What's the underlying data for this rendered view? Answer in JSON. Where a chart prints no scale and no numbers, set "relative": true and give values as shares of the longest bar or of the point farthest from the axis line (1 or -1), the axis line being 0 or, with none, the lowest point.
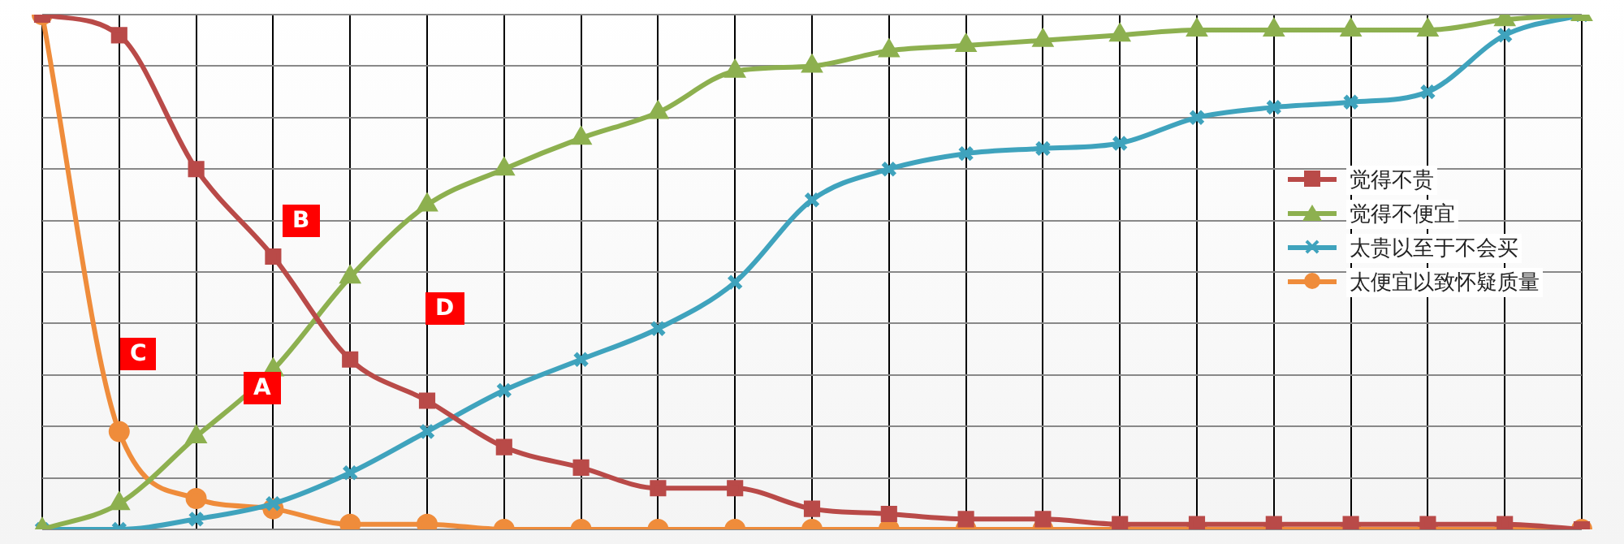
{
  "chart_data": {
    "type": "line",
    "relative": true,
    "grid": true,
    "legend": "right",
    "categories": [
      null,
      null,
      null,
      null,
      null,
      null,
      null,
      null,
      null,
      null,
      null,
      null,
      null,
      null,
      null,
      null,
      null,
      null,
      null,
      null,
      null
    ],
    "series": [
      {
        "name": "觉得不贵",
        "color": "#b94a48",
        "marker": "square",
        "values": [
          1,
          0.96,
          0.7,
          0.53,
          0.33,
          0.25,
          0.16,
          0.12,
          0.08,
          0.08,
          0.04,
          0.03,
          0.02,
          0.02,
          0.01,
          0.01,
          0.01,
          0.01,
          0.01,
          0.01,
          0
        ]
      },
      {
        "name": "觉得不便宜",
        "color": "#8db04f",
        "marker": "triangle",
        "values": [
          0,
          0.05,
          0.18,
          0.31,
          0.49,
          0.63,
          0.7,
          0.76,
          0.81,
          0.89,
          0.9,
          0.93,
          0.94,
          0.95,
          0.96,
          0.97,
          0.97,
          0.97,
          0.97,
          0.99,
          1
        ]
      },
      {
        "name": "太贵以至于不会买",
        "color": "#3fa3bd",
        "marker": "cross",
        "values": [
          0,
          0,
          0.02,
          0.05,
          0.11,
          0.19,
          0.27,
          0.33,
          0.39,
          0.48,
          0.64,
          0.7,
          0.73,
          0.74,
          0.75,
          0.8,
          0.82,
          0.83,
          0.85,
          0.96,
          1
        ]
      },
      {
        "name": "太便宜以致怀疑质量",
        "color": "#ef8c3b",
        "marker": "circle",
        "values": [
          1,
          0.19,
          0.06,
          0.04,
          0.01,
          0.01,
          0,
          0,
          0,
          0,
          0,
          0,
          0,
          0,
          0,
          0,
          0,
          0,
          0,
          0,
          0
        ]
      }
    ],
    "annotations": [
      "A",
      "B",
      "C",
      "D"
    ]
  }
}
